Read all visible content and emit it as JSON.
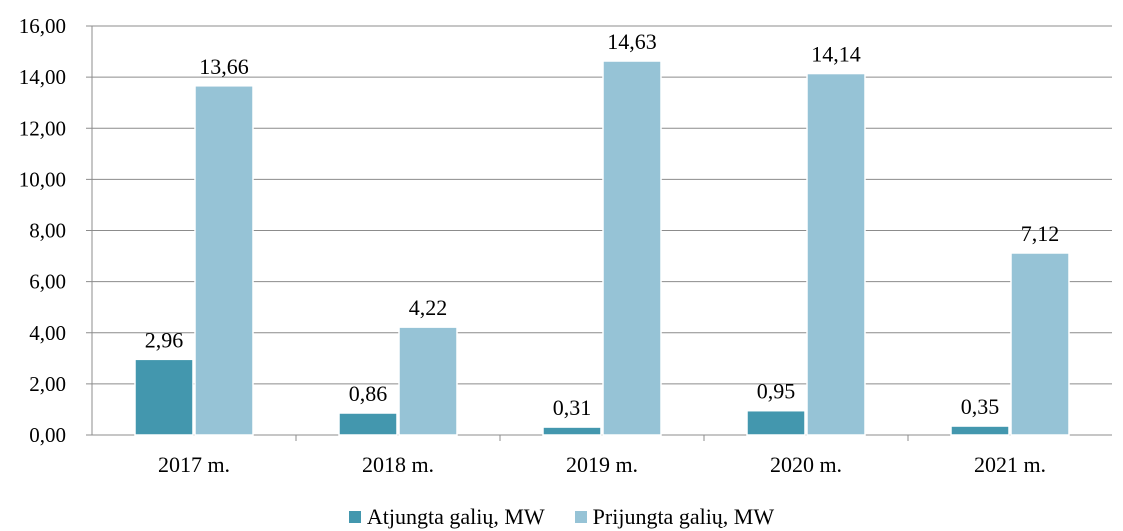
{
  "chart_data": {
    "type": "bar",
    "categories": [
      "2017 m.",
      "2018 m.",
      "2019 m.",
      "2020 m.",
      "2021 m."
    ],
    "series": [
      {
        "name": "Atjungta galių, MW",
        "values": [
          2.96,
          0.86,
          0.31,
          0.95,
          0.35
        ],
        "labels": [
          "2,96",
          "0,86",
          "0,31",
          "0,95",
          "0,35"
        ],
        "color": "#4397ae"
      },
      {
        "name": "Prijungta galių, MW",
        "values": [
          13.66,
          4.22,
          14.63,
          14.14,
          7.12
        ],
        "labels": [
          "13,66",
          "4,22",
          "14,63",
          "14,14",
          "7,12"
        ],
        "color": "#96c3d6"
      }
    ],
    "ylim": [
      0,
      16
    ],
    "yticks": [
      0,
      2,
      4,
      6,
      8,
      10,
      12,
      14,
      16
    ],
    "ytick_labels": [
      "0,00",
      "2,00",
      "4,00",
      "6,00",
      "8,00",
      "10,00",
      "12,00",
      "14,00",
      "16,00"
    ],
    "grid": true,
    "legend_position": "bottom",
    "title": "",
    "xlabel": "",
    "ylabel": ""
  }
}
